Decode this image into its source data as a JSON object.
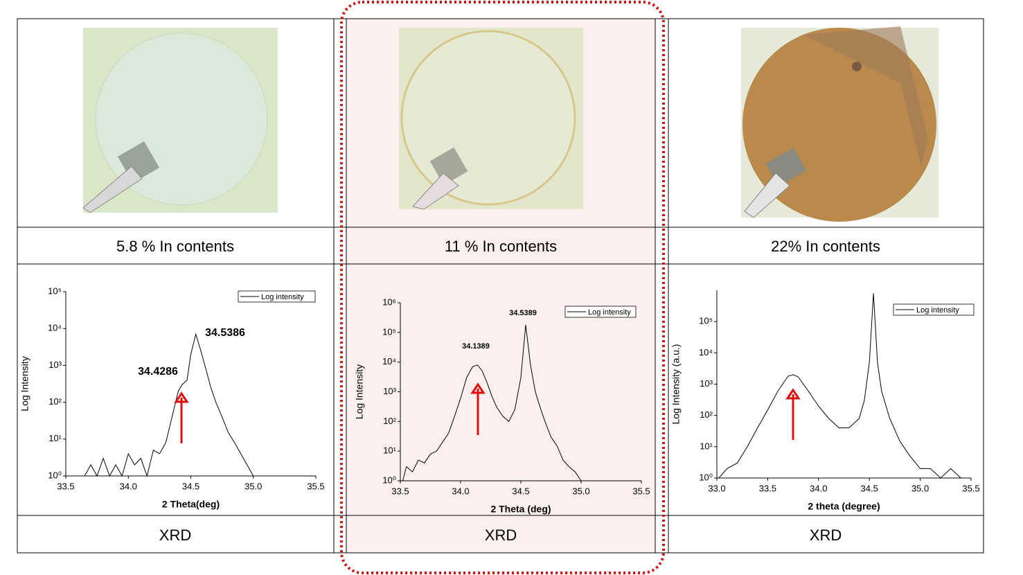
{
  "table": {
    "captions": [
      "5.8 % In contents",
      "11 % In contents",
      "22% In contents"
    ],
    "footers": [
      "XRD",
      "XRD",
      "XRD"
    ]
  },
  "chart_data": [
    {
      "type": "line",
      "xlabel": "2 Theta(deg)",
      "ylabel": "Log Intensity",
      "log_y": true,
      "legend": "top-right",
      "annotations": [
        "34.4286",
        "34.5386"
      ],
      "x": [
        33.65,
        33.7,
        33.75,
        33.8,
        33.85,
        33.9,
        33.95,
        34.0,
        34.05,
        34.1,
        34.15,
        34.2,
        34.25,
        34.3,
        34.35,
        34.4,
        34.43,
        34.47,
        34.5,
        34.54,
        34.58,
        34.62,
        34.66,
        34.7,
        34.75,
        34.8,
        34.85,
        34.9,
        34.95,
        35.0
      ],
      "series": [
        {
          "name": "Log intensity",
          "color": "#000000",
          "values": [
            1,
            2,
            1,
            3,
            1,
            2,
            1,
            4,
            2,
            3,
            1,
            5,
            4,
            8,
            40,
            200,
            300,
            400,
            2000,
            7000,
            2500,
            800,
            250,
            100,
            40,
            15,
            8,
            4,
            2,
            1
          ]
        }
      ],
      "xlim": [
        33.5,
        35.5
      ],
      "ylim": [
        1,
        100000
      ],
      "xticks": [
        33.5,
        {
          "value": 34,
          "label": "34.0"
        },
        34.5,
        {
          "value": 35,
          "label": "35.0"
        },
        35.5
      ],
      "yticks": [
        {
          "value": 1,
          "label": "10⁰"
        },
        {
          "value": 10,
          "label": "10¹"
        },
        {
          "value": 100,
          "label": "10²"
        },
        {
          "value": 1000,
          "label": "10³"
        },
        {
          "value": 10000,
          "label": "10⁴"
        },
        {
          "value": 100000,
          "label": "10⁵"
        }
      ]
    },
    {
      "type": "line",
      "xlabel": "2 Theta (deg)",
      "ylabel": "Log Intensity",
      "log_y": true,
      "legend": "top-right",
      "annotations": [
        "34.1389",
        "34.5389"
      ],
      "x": [
        33.52,
        33.55,
        33.6,
        33.65,
        33.7,
        33.75,
        33.8,
        33.85,
        33.9,
        33.95,
        34.0,
        34.05,
        34.1,
        34.14,
        34.18,
        34.22,
        34.26,
        34.3,
        34.35,
        34.4,
        34.45,
        34.5,
        34.54,
        34.58,
        34.62,
        34.66,
        34.7,
        34.75,
        34.8,
        34.85,
        34.9,
        34.95,
        35.0,
        35.2,
        35.4
      ],
      "series": [
        {
          "name": "Log intensity",
          "color": "#000000",
          "values": [
            1,
            3,
            2,
            5,
            4,
            8,
            10,
            20,
            40,
            150,
            600,
            3000,
            7000,
            8000,
            5000,
            2000,
            700,
            300,
            150,
            100,
            250,
            3000,
            180000,
            8000,
            1000,
            300,
            100,
            30,
            15,
            5,
            3,
            2,
            1,
            1,
            1
          ]
        }
      ],
      "xlim": [
        33.5,
        35.5
      ],
      "ylim": [
        1,
        1000000
      ],
      "xticks": [
        33.5,
        {
          "value": 34,
          "label": "34.0"
        },
        34.5,
        {
          "value": 35,
          "label": "35.0"
        },
        35.5
      ],
      "yticks": [
        {
          "value": 1,
          "label": "10⁰"
        },
        {
          "value": 10,
          "label": "10¹"
        },
        {
          "value": 100,
          "label": "10²"
        },
        {
          "value": 1000,
          "label": "10³"
        },
        {
          "value": 10000,
          "label": "10⁴"
        },
        {
          "value": 100000,
          "label": "10⁵"
        },
        {
          "value": 1000000,
          "label": "10⁶"
        }
      ]
    },
    {
      "type": "line",
      "xlabel": "2 theta (degree)",
      "ylabel": "Log Intensity (a.u.)",
      "log_y": true,
      "legend": "top-right",
      "x": [
        33.02,
        33.1,
        33.2,
        33.3,
        33.4,
        33.5,
        33.6,
        33.7,
        33.75,
        33.8,
        33.9,
        34.0,
        34.1,
        34.2,
        34.3,
        34.4,
        34.45,
        34.5,
        34.54,
        34.58,
        34.62,
        34.7,
        34.8,
        34.9,
        35.0,
        35.1,
        35.2,
        35.3,
        35.4
      ],
      "series": [
        {
          "name": "Log intensity",
          "color": "#000000",
          "values": [
            1,
            2,
            3,
            10,
            40,
            150,
            600,
            1800,
            2000,
            1700,
            600,
            200,
            80,
            40,
            40,
            80,
            300,
            5000,
            800000,
            5000,
            600,
            80,
            15,
            5,
            2,
            2,
            1,
            2,
            1
          ]
        }
      ],
      "xlim": [
        33.0,
        35.5
      ],
      "ylim": [
        1,
        1000000
      ],
      "xticks": [
        {
          "value": 33,
          "label": "33.0"
        },
        33.5,
        {
          "value": 34,
          "label": "34.0"
        },
        34.5,
        {
          "value": 35,
          "label": "35.0"
        },
        35.5
      ],
      "yticks": [
        {
          "value": 1,
          "label": "10⁰"
        },
        {
          "value": 10,
          "label": "10¹"
        },
        {
          "value": 100,
          "label": "10²"
        },
        {
          "value": 1000,
          "label": "10³"
        },
        {
          "value": 10000,
          "label": "10⁴"
        },
        {
          "value": 100000,
          "label": "10⁵"
        }
      ]
    }
  ]
}
